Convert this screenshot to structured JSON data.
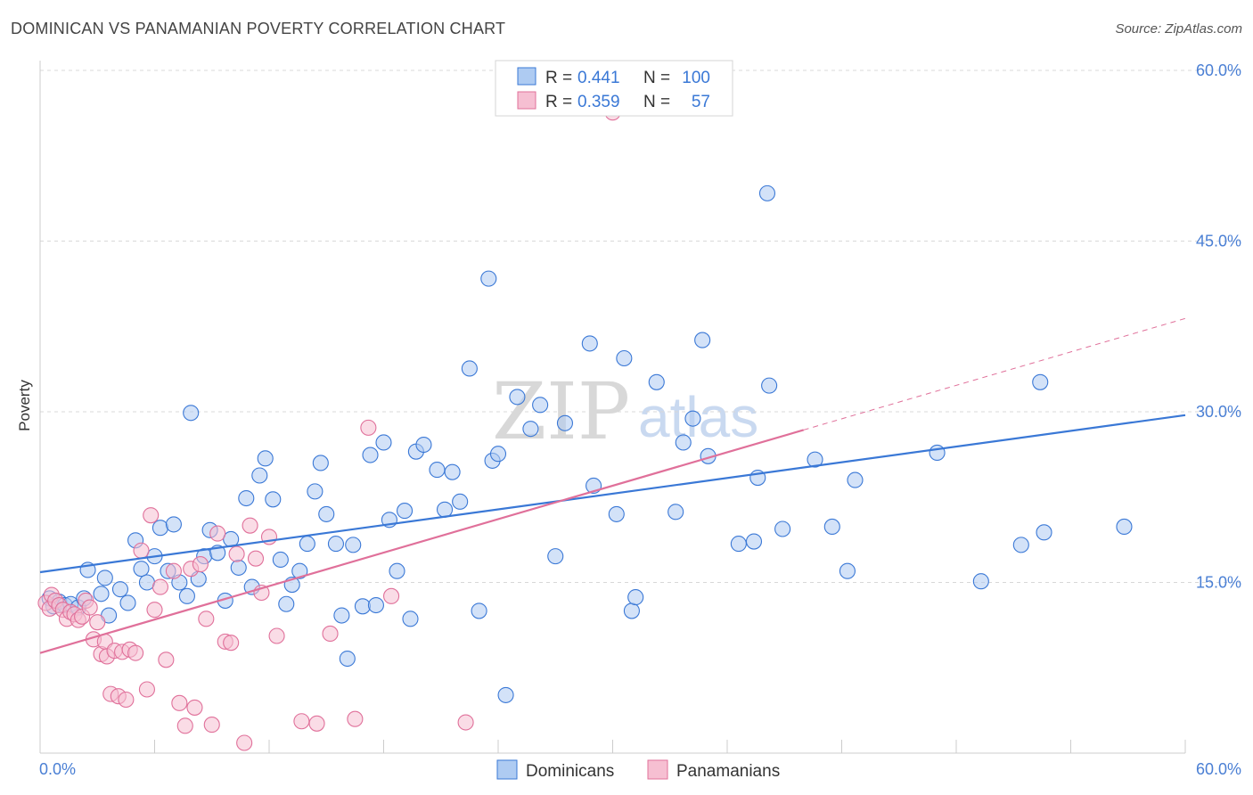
{
  "header": {
    "title": "DOMINICAN VS PANAMANIAN POVERTY CORRELATION CHART",
    "source": "Source: ZipAtlas.com"
  },
  "watermark": {
    "zip": "ZIP",
    "atlas": "atlas"
  },
  "colors": {
    "blue": "#3a78d6",
    "blue_fill": "#aecbf2",
    "pink": "#e0709a",
    "pink_fill": "#f6bfd2",
    "grid": "#d8d8d8"
  },
  "legend": {
    "rows": [
      {
        "r_label": "R =",
        "r_value": "0.441",
        "n_label": "N =",
        "n_value": "100"
      },
      {
        "r_label": "R =",
        "r_value": "0.359",
        "n_label": "N =",
        "n_value": "57"
      }
    ]
  },
  "chart_data": {
    "type": "scatter",
    "title": "DOMINICAN VS PANAMANIAN POVERTY CORRELATION CHART",
    "ylabel": "Poverty",
    "xlabel": "",
    "xlim": [
      0,
      60
    ],
    "ylim": [
      0,
      60
    ],
    "x_tick_labels": [
      "0.0%",
      "60.0%"
    ],
    "y_tick_labels": [
      "15.0%",
      "30.0%",
      "45.0%",
      "60.0%"
    ],
    "y_ticks": [
      15,
      30,
      45,
      60
    ],
    "grid": true,
    "legend_position": "top-center",
    "series": [
      {
        "name": "Dominicans",
        "color": "#3a78d6",
        "r": 0.441,
        "n": 100,
        "trend": {
          "x": [
            0,
            60
          ],
          "y": [
            15.9,
            29.7
          ]
        },
        "points": [
          [
            0.5,
            13.6
          ],
          [
            0.7,
            12.9
          ],
          [
            1.0,
            13.3
          ],
          [
            1.3,
            13.0
          ],
          [
            1.6,
            13.1
          ],
          [
            2.0,
            12.8
          ],
          [
            2.3,
            13.6
          ],
          [
            2.5,
            16.1
          ],
          [
            3.2,
            14.0
          ],
          [
            3.4,
            15.4
          ],
          [
            3.6,
            12.1
          ],
          [
            4.2,
            14.4
          ],
          [
            4.6,
            13.2
          ],
          [
            5.0,
            18.7
          ],
          [
            5.3,
            16.2
          ],
          [
            5.6,
            15.0
          ],
          [
            6.0,
            17.3
          ],
          [
            6.3,
            19.8
          ],
          [
            6.7,
            16.0
          ],
          [
            7.0,
            20.1
          ],
          [
            7.3,
            15.0
          ],
          [
            7.7,
            13.8
          ],
          [
            7.9,
            29.9
          ],
          [
            8.3,
            15.3
          ],
          [
            8.6,
            17.3
          ],
          [
            8.9,
            19.6
          ],
          [
            9.3,
            17.6
          ],
          [
            9.7,
            13.4
          ],
          [
            10.0,
            18.8
          ],
          [
            10.4,
            16.3
          ],
          [
            10.8,
            22.4
          ],
          [
            11.1,
            14.6
          ],
          [
            11.5,
            24.4
          ],
          [
            11.8,
            25.9
          ],
          [
            12.2,
            22.3
          ],
          [
            12.6,
            17.0
          ],
          [
            12.9,
            13.1
          ],
          [
            13.2,
            14.8
          ],
          [
            13.6,
            16.0
          ],
          [
            14.0,
            18.4
          ],
          [
            14.4,
            23.0
          ],
          [
            14.7,
            25.5
          ],
          [
            15.0,
            21.0
          ],
          [
            15.5,
            18.4
          ],
          [
            15.8,
            12.1
          ],
          [
            16.1,
            8.3
          ],
          [
            16.4,
            18.3
          ],
          [
            16.9,
            12.9
          ],
          [
            17.3,
            26.2
          ],
          [
            17.6,
            13.0
          ],
          [
            18.0,
            27.3
          ],
          [
            18.3,
            20.5
          ],
          [
            18.7,
            16.0
          ],
          [
            19.1,
            21.3
          ],
          [
            19.4,
            11.8
          ],
          [
            19.7,
            26.5
          ],
          [
            20.1,
            27.1
          ],
          [
            20.8,
            24.9
          ],
          [
            21.2,
            21.4
          ],
          [
            21.6,
            24.7
          ],
          [
            22.0,
            22.1
          ],
          [
            22.5,
            33.8
          ],
          [
            23.0,
            12.5
          ],
          [
            23.5,
            41.7
          ],
          [
            23.7,
            25.7
          ],
          [
            24.0,
            26.3
          ],
          [
            24.4,
            5.1
          ],
          [
            25.0,
            31.3
          ],
          [
            25.7,
            28.5
          ],
          [
            26.2,
            30.6
          ],
          [
            27.0,
            17.3
          ],
          [
            27.5,
            29.0
          ],
          [
            28.8,
            36.0
          ],
          [
            29.0,
            23.5
          ],
          [
            30.2,
            21.0
          ],
          [
            30.6,
            34.7
          ],
          [
            31.0,
            12.5
          ],
          [
            31.2,
            13.7
          ],
          [
            32.3,
            32.6
          ],
          [
            33.3,
            21.2
          ],
          [
            33.7,
            27.3
          ],
          [
            34.2,
            29.4
          ],
          [
            34.7,
            36.3
          ],
          [
            35.0,
            26.1
          ],
          [
            36.6,
            18.4
          ],
          [
            37.4,
            18.6
          ],
          [
            37.6,
            24.2
          ],
          [
            38.1,
            49.2
          ],
          [
            38.2,
            32.3
          ],
          [
            38.9,
            19.7
          ],
          [
            40.6,
            25.8
          ],
          [
            41.5,
            19.9
          ],
          [
            42.3,
            16.0
          ],
          [
            42.7,
            24.0
          ],
          [
            47.0,
            26.4
          ],
          [
            49.3,
            15.1
          ],
          [
            51.4,
            18.3
          ],
          [
            52.4,
            32.6
          ],
          [
            52.6,
            19.4
          ],
          [
            56.8,
            19.9
          ]
        ]
      },
      {
        "name": "Panamanians",
        "color": "#e0709a",
        "r": 0.359,
        "n": 57,
        "trend": {
          "x": [
            0,
            40
          ],
          "y": [
            8.8,
            28.4
          ]
        },
        "trend_extension": {
          "x": [
            40,
            60
          ],
          "y": [
            28.4,
            38.2
          ]
        },
        "points": [
          [
            0.3,
            13.2
          ],
          [
            0.5,
            12.7
          ],
          [
            0.6,
            13.9
          ],
          [
            0.8,
            13.4
          ],
          [
            1.0,
            13.0
          ],
          [
            1.2,
            12.6
          ],
          [
            1.4,
            11.8
          ],
          [
            1.6,
            12.4
          ],
          [
            1.8,
            12.2
          ],
          [
            2.0,
            11.7
          ],
          [
            2.2,
            12.0
          ],
          [
            2.4,
            13.4
          ],
          [
            2.6,
            12.8
          ],
          [
            2.8,
            10.0
          ],
          [
            3.0,
            11.5
          ],
          [
            3.2,
            8.7
          ],
          [
            3.4,
            9.8
          ],
          [
            3.5,
            8.5
          ],
          [
            3.7,
            5.2
          ],
          [
            3.9,
            9.0
          ],
          [
            4.1,
            5.0
          ],
          [
            4.3,
            8.9
          ],
          [
            4.5,
            4.7
          ],
          [
            4.7,
            9.1
          ],
          [
            5.0,
            8.8
          ],
          [
            5.3,
            17.8
          ],
          [
            5.6,
            5.6
          ],
          [
            5.8,
            20.9
          ],
          [
            6.0,
            12.6
          ],
          [
            6.3,
            14.6
          ],
          [
            6.6,
            8.2
          ],
          [
            7.0,
            16.0
          ],
          [
            7.3,
            4.4
          ],
          [
            7.6,
            2.4
          ],
          [
            7.9,
            16.2
          ],
          [
            8.1,
            4.0
          ],
          [
            8.4,
            16.6
          ],
          [
            8.7,
            11.8
          ],
          [
            9.0,
            2.5
          ],
          [
            9.3,
            19.3
          ],
          [
            9.7,
            9.8
          ],
          [
            10.0,
            9.7
          ],
          [
            10.3,
            17.5
          ],
          [
            10.7,
            0.9
          ],
          [
            11.0,
            20.0
          ],
          [
            11.3,
            17.1
          ],
          [
            11.6,
            14.1
          ],
          [
            12.0,
            19.0
          ],
          [
            12.4,
            10.3
          ],
          [
            13.7,
            2.8
          ],
          [
            14.5,
            2.6
          ],
          [
            15.2,
            10.5
          ],
          [
            16.5,
            3.0
          ],
          [
            17.2,
            28.6
          ],
          [
            18.4,
            13.8
          ],
          [
            22.3,
            2.7
          ],
          [
            30.0,
            56.3
          ]
        ]
      }
    ]
  }
}
